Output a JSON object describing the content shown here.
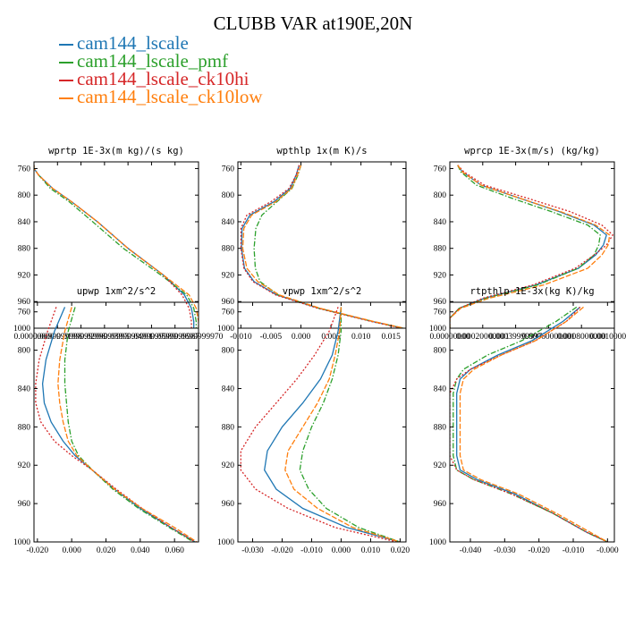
{
  "title": "CLUBB VAR at190E,20N",
  "legend": [
    {
      "name": "cam144_lscale",
      "color": "#1f77b4"
    },
    {
      "name": "cam144_lscale_pmf",
      "color": "#2ca02c"
    },
    {
      "name": "cam144_lscale_ck10hi",
      "color": "#d62728"
    },
    {
      "name": "cam144_lscale_ck10low",
      "color": "#ff7f0e"
    }
  ],
  "chart_data": [
    {
      "type": "line",
      "title": "wprtp 1E-3x(m kg)/(s kg)",
      "xlim": [
        0.0,
        0.07
      ],
      "ylim": [
        750,
        1000
      ],
      "xticklabels": [
        "0.00000000",
        "0.0099999998",
        "0.0199999996",
        "0.0299999993",
        "0.0399999991",
        "0.0499999989",
        "0.0599999987",
        "0.0699999970"
      ],
      "yticks": [
        760,
        800,
        840,
        880,
        920,
        960,
        1000
      ],
      "series": [
        {
          "name": "cam144_lscale",
          "y": [
            755,
            760,
            770,
            790,
            810,
            840,
            880,
            920,
            950,
            970,
            990,
            1000
          ],
          "x": [
            0.0,
            0.0,
            0.002,
            0.008,
            0.016,
            0.027,
            0.04,
            0.055,
            0.064,
            0.067,
            0.068,
            0.068
          ]
        },
        {
          "name": "cam144_lscale_pmf",
          "y": [
            755,
            760,
            770,
            790,
            810,
            840,
            880,
            920,
            950,
            970,
            990,
            1000
          ],
          "x": [
            0.0,
            0.0,
            0.002,
            0.007,
            0.015,
            0.025,
            0.038,
            0.054,
            0.065,
            0.068,
            0.069,
            0.069
          ]
        },
        {
          "name": "cam144_lscale_ck10hi",
          "y": [
            755,
            760,
            770,
            790,
            810,
            840,
            880,
            920,
            950,
            970,
            990,
            1000
          ],
          "x": [
            0.0,
            0.0,
            0.002,
            0.008,
            0.016,
            0.027,
            0.04,
            0.055,
            0.063,
            0.066,
            0.067,
            0.067
          ]
        },
        {
          "name": "cam144_lscale_ck10low",
          "y": [
            755,
            760,
            770,
            790,
            810,
            840,
            880,
            920,
            950,
            970,
            990,
            1000
          ],
          "x": [
            0.0,
            0.0,
            0.002,
            0.008,
            0.016,
            0.027,
            0.04,
            0.055,
            0.066,
            0.069,
            0.07,
            0.07
          ]
        }
      ]
    },
    {
      "type": "line",
      "title": "wpthlp 1x(m K)/s",
      "xlim": [
        -0.0105,
        0.0175
      ],
      "ylim": [
        750,
        1000
      ],
      "xticks": [
        -0.01,
        -0.005,
        0.0,
        0.005,
        0.01,
        0.015
      ],
      "xticklabels": [
        "-0.010",
        "-0.005",
        "0.000",
        "0.005",
        "0.010",
        "0.015"
      ],
      "yticks": [
        760,
        800,
        840,
        880,
        920,
        960,
        1000
      ],
      "series": [
        {
          "name": "cam144_lscale",
          "y": [
            755,
            770,
            790,
            810,
            830,
            850,
            880,
            910,
            930,
            950,
            970,
            990,
            1000
          ],
          "x": [
            -0.0003,
            -0.0008,
            -0.0018,
            -0.0045,
            -0.0085,
            -0.0098,
            -0.0099,
            -0.0094,
            -0.0078,
            -0.004,
            0.003,
            0.012,
            0.017
          ]
        },
        {
          "name": "cam144_lscale_pmf",
          "y": [
            755,
            770,
            790,
            810,
            830,
            850,
            880,
            910,
            930,
            950,
            970,
            990,
            1000
          ],
          "x": [
            0.0,
            -0.0005,
            -0.0015,
            -0.004,
            -0.0065,
            -0.0075,
            -0.0078,
            -0.0076,
            -0.0068,
            -0.0038,
            0.003,
            0.012,
            0.017
          ]
        },
        {
          "name": "cam144_lscale_ck10hi",
          "y": [
            755,
            770,
            790,
            810,
            830,
            850,
            880,
            910,
            930,
            950,
            970,
            990,
            1000
          ],
          "x": [
            -0.0003,
            -0.0008,
            -0.002,
            -0.005,
            -0.009,
            -0.01,
            -0.01,
            -0.0095,
            -0.008,
            -0.0042,
            0.0028,
            0.0118,
            0.0168
          ]
        },
        {
          "name": "cam144_lscale_ck10low",
          "y": [
            755,
            770,
            790,
            810,
            830,
            850,
            880,
            910,
            930,
            950,
            970,
            990,
            1000
          ],
          "x": [
            0.0,
            -0.0006,
            -0.0016,
            -0.0042,
            -0.0082,
            -0.0095,
            -0.0097,
            -0.009,
            -0.0072,
            -0.0036,
            0.0032,
            0.0122,
            0.0172
          ]
        }
      ]
    },
    {
      "type": "line",
      "title": "wprcp 1E-3x(m/s) (kg/kg)",
      "xlim": [
        0.0,
        0.00105
      ],
      "ylim": [
        750,
        1000
      ],
      "xticklabels": [
        "0.00000000",
        "0.00020000001",
        "0.00039999997",
        "0.00060000001",
        "0.0008000000",
        "0.0010000000"
      ],
      "yticks": [
        760,
        800,
        840,
        880,
        920,
        960,
        1000
      ],
      "series": [
        {
          "name": "cam144_lscale",
          "y": [
            755,
            765,
            785,
            805,
            825,
            845,
            860,
            875,
            890,
            910,
            935,
            955,
            970,
            985,
            1000
          ],
          "x": [
            5e-05,
            8e-05,
            0.0002,
            0.00045,
            0.0007,
            0.00092,
            0.001,
            0.00098,
            0.00093,
            0.00082,
            0.00055,
            0.00022,
            6e-05,
            0.0,
            0.0
          ]
        },
        {
          "name": "cam144_lscale_pmf",
          "y": [
            755,
            765,
            785,
            805,
            825,
            845,
            860,
            875,
            890,
            910,
            935,
            955,
            970,
            985,
            1000
          ],
          "x": [
            5e-05,
            7e-05,
            0.00017,
            0.0004,
            0.00065,
            0.00088,
            0.00096,
            0.00095,
            0.00092,
            0.00082,
            0.00056,
            0.00023,
            6e-05,
            0.0,
            0.0
          ]
        },
        {
          "name": "cam144_lscale_ck10hi",
          "y": [
            755,
            765,
            785,
            805,
            825,
            845,
            860,
            875,
            890,
            910,
            935,
            955,
            970,
            985,
            1000
          ],
          "x": [
            5e-05,
            9e-05,
            0.00022,
            0.0005,
            0.00077,
            0.00097,
            0.00104,
            0.001,
            0.00092,
            0.0008,
            0.00053,
            0.00021,
            6e-05,
            0.0,
            0.0
          ]
        },
        {
          "name": "cam144_lscale_ck10low",
          "y": [
            755,
            765,
            785,
            805,
            825,
            845,
            860,
            875,
            890,
            910,
            935,
            955,
            970,
            985,
            1000
          ],
          "x": [
            5e-05,
            8e-05,
            0.0002,
            0.00045,
            0.00071,
            0.00093,
            0.00102,
            0.00101,
            0.00097,
            0.00088,
            0.0006,
            0.00025,
            7e-05,
            0.0,
            0.0
          ]
        }
      ]
    },
    {
      "type": "line",
      "title": "upwp 1xm^2/s^2",
      "xlim": [
        -0.022,
        0.074
      ],
      "ylim": [
        750,
        1000
      ],
      "xticks": [
        -0.02,
        0.0,
        0.02,
        0.04,
        0.06
      ],
      "xticklabels": [
        "-0.020",
        "0.000",
        "0.020",
        "0.040",
        "0.060"
      ],
      "yticks": [
        760,
        800,
        840,
        880,
        920,
        960,
        1000
      ],
      "series": [
        {
          "name": "cam144_lscale",
          "y": [
            755,
            780,
            810,
            835,
            855,
            875,
            895,
            910,
            925,
            945,
            965,
            985,
            1000
          ],
          "x": [
            -0.004,
            -0.01,
            -0.015,
            -0.017,
            -0.016,
            -0.012,
            -0.005,
            0.002,
            0.012,
            0.025,
            0.04,
            0.058,
            0.072
          ]
        },
        {
          "name": "cam144_lscale_pmf",
          "y": [
            755,
            780,
            810,
            835,
            855,
            875,
            895,
            910,
            925,
            945,
            965,
            985,
            1000
          ],
          "x": [
            0.002,
            -0.002,
            -0.004,
            -0.004,
            -0.003,
            -0.002,
            0.0,
            0.004,
            0.012,
            0.024,
            0.039,
            0.057,
            0.071
          ]
        },
        {
          "name": "cam144_lscale_ck10hi",
          "y": [
            755,
            780,
            810,
            835,
            855,
            875,
            895,
            910,
            925,
            945,
            965,
            985,
            1000
          ],
          "x": [
            -0.009,
            -0.014,
            -0.019,
            -0.021,
            -0.021,
            -0.018,
            -0.01,
            0.0,
            0.012,
            0.026,
            0.041,
            0.058,
            0.072
          ]
        },
        {
          "name": "cam144_lscale_ck10low",
          "y": [
            755,
            780,
            810,
            835,
            855,
            875,
            895,
            910,
            925,
            945,
            965,
            985,
            1000
          ],
          "x": [
            0.0,
            -0.004,
            -0.007,
            -0.008,
            -0.007,
            -0.005,
            -0.002,
            0.003,
            0.012,
            0.025,
            0.041,
            0.06,
            0.073
          ]
        }
      ]
    },
    {
      "type": "line",
      "title": "vpwp 1xm^2/s^2",
      "xlim": [
        -0.035,
        0.022
      ],
      "ylim": [
        750,
        1000
      ],
      "xticks": [
        -0.03,
        -0.02,
        -0.01,
        0.0,
        0.01,
        0.02
      ],
      "xticklabels": [
        "-0.030",
        "-0.020",
        "-0.010",
        "0.000",
        "0.010",
        "0.020"
      ],
      "yticks": [
        760,
        800,
        840,
        880,
        920,
        960,
        1000
      ],
      "series": [
        {
          "name": "cam144_lscale",
          "y": [
            755,
            780,
            805,
            830,
            855,
            880,
            905,
            925,
            945,
            965,
            985,
            1000
          ],
          "x": [
            0.0,
            -0.001,
            -0.003,
            -0.007,
            -0.013,
            -0.02,
            -0.025,
            -0.026,
            -0.022,
            -0.013,
            0.002,
            0.02
          ]
        },
        {
          "name": "cam144_lscale_pmf",
          "y": [
            755,
            780,
            805,
            830,
            855,
            880,
            905,
            925,
            945,
            965,
            985,
            1000
          ],
          "x": [
            0.0,
            0.0,
            -0.001,
            -0.003,
            -0.006,
            -0.01,
            -0.013,
            -0.014,
            -0.011,
            -0.005,
            0.006,
            0.02
          ]
        },
        {
          "name": "cam144_lscale_ck10hi",
          "y": [
            755,
            780,
            805,
            830,
            855,
            880,
            905,
            925,
            945,
            965,
            985,
            1000
          ],
          "x": [
            -0.001,
            -0.004,
            -0.009,
            -0.015,
            -0.022,
            -0.029,
            -0.034,
            -0.034,
            -0.029,
            -0.018,
            -0.002,
            0.019
          ]
        },
        {
          "name": "cam144_lscale_ck10low",
          "y": [
            755,
            780,
            805,
            830,
            855,
            880,
            905,
            925,
            945,
            965,
            985,
            1000
          ],
          "x": [
            0.0,
            -0.0005,
            -0.002,
            -0.004,
            -0.008,
            -0.013,
            -0.018,
            -0.019,
            -0.016,
            -0.008,
            0.004,
            0.02
          ]
        }
      ]
    },
    {
      "type": "line",
      "title": "rtpthlp 1E-3x(kg K)/kg",
      "xlim": [
        -0.046,
        0.002
      ],
      "ylim": [
        750,
        1000
      ],
      "xticks": [
        -0.04,
        -0.03,
        -0.02,
        -0.01,
        0.0
      ],
      "xticklabels": [
        "-0.040",
        "-0.030",
        "-0.020",
        "-0.010",
        "-0.000"
      ],
      "yticks": [
        760,
        800,
        840,
        880,
        920,
        960,
        1000
      ],
      "series": [
        {
          "name": "cam144_lscale",
          "y": [
            755,
            770,
            790,
            805,
            820,
            830,
            845,
            880,
            910,
            925,
            935,
            950,
            970,
            990,
            1000
          ],
          "x": [
            -0.008,
            -0.013,
            -0.022,
            -0.032,
            -0.04,
            -0.043,
            -0.044,
            -0.044,
            -0.044,
            -0.043,
            -0.038,
            -0.027,
            -0.016,
            -0.006,
            0.0
          ]
        },
        {
          "name": "cam144_lscale_pmf",
          "y": [
            755,
            770,
            790,
            805,
            820,
            830,
            845,
            880,
            910,
            925,
            935,
            950,
            970,
            990,
            1000
          ],
          "x": [
            -0.009,
            -0.015,
            -0.025,
            -0.035,
            -0.042,
            -0.044,
            -0.045,
            -0.045,
            -0.045,
            -0.044,
            -0.039,
            -0.028,
            -0.016,
            -0.006,
            0.0
          ]
        },
        {
          "name": "cam144_lscale_ck10hi",
          "y": [
            755,
            770,
            790,
            805,
            820,
            830,
            845,
            880,
            910,
            925,
            935,
            950,
            970,
            990,
            1000
          ],
          "x": [
            -0.008,
            -0.012,
            -0.021,
            -0.031,
            -0.04,
            -0.044,
            -0.046,
            -0.046,
            -0.046,
            -0.044,
            -0.039,
            -0.028,
            -0.016,
            -0.006,
            0.0
          ]
        },
        {
          "name": "cam144_lscale_ck10low",
          "y": [
            755,
            770,
            790,
            805,
            820,
            830,
            845,
            880,
            910,
            925,
            935,
            950,
            970,
            990,
            1000
          ],
          "x": [
            -0.007,
            -0.012,
            -0.021,
            -0.031,
            -0.039,
            -0.042,
            -0.043,
            -0.043,
            -0.043,
            -0.042,
            -0.037,
            -0.026,
            -0.015,
            -0.005,
            0.0
          ]
        }
      ]
    }
  ]
}
